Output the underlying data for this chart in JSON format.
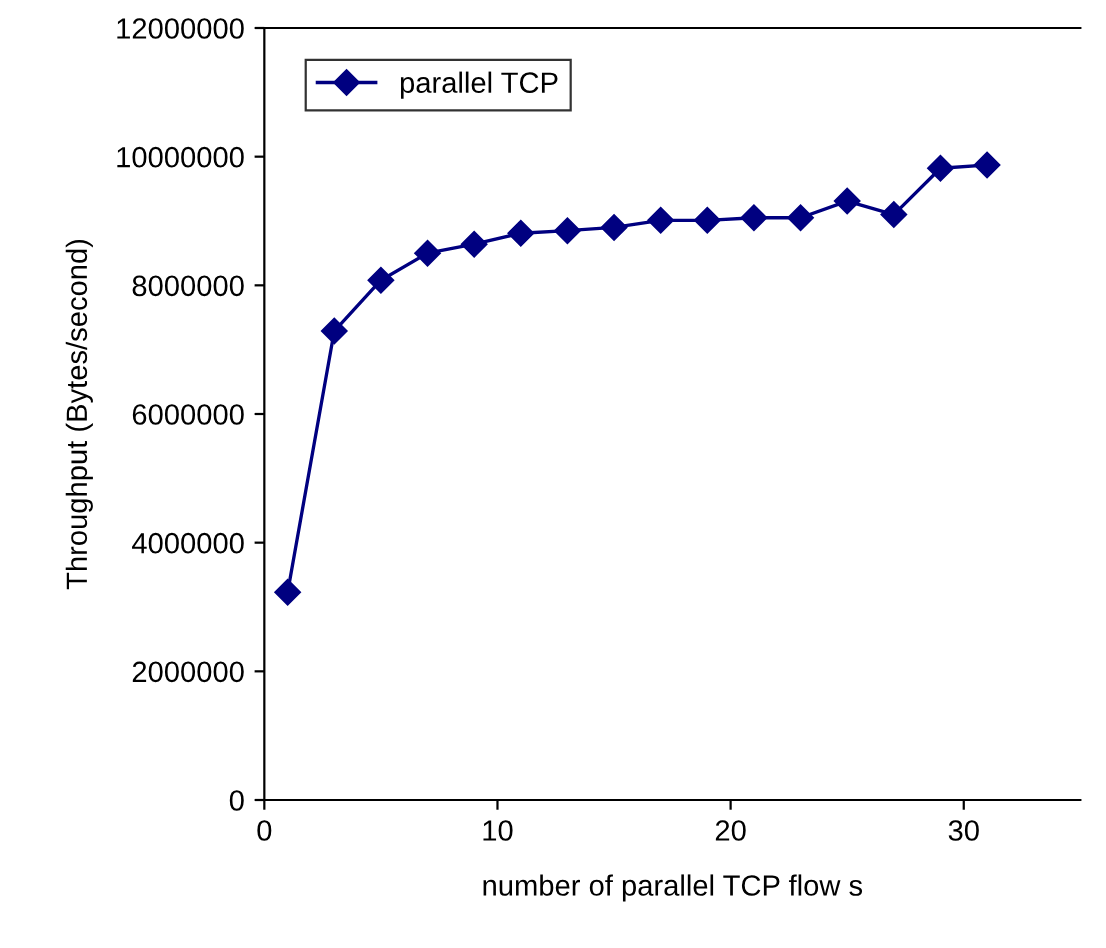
{
  "chart_data": {
    "type": "line",
    "xlabel": "number of parallel TCP flow s",
    "ylabel": "Throughput (Bytes/second)",
    "x": [
      1,
      3,
      5,
      7,
      9,
      11,
      13,
      15,
      17,
      19,
      21,
      23,
      25,
      27,
      29,
      31
    ],
    "series": [
      {
        "name": "parallel TCP",
        "color": "#000080",
        "values": [
          3230000,
          7290000,
          8080000,
          8500000,
          8640000,
          8810000,
          8850000,
          8900000,
          9010000,
          9010000,
          9050000,
          9050000,
          9310000,
          9100000,
          9820000,
          9870000
        ]
      }
    ],
    "xlim": [
      0,
      35
    ],
    "xticks": [
      0,
      10,
      20,
      30
    ],
    "ylim": [
      0,
      12000000
    ],
    "yticks": [
      0,
      2000000,
      4000000,
      6000000,
      8000000,
      10000000,
      12000000
    ],
    "marker": "diamond",
    "line_style": "solid",
    "grid": false,
    "legend": "top left"
  }
}
